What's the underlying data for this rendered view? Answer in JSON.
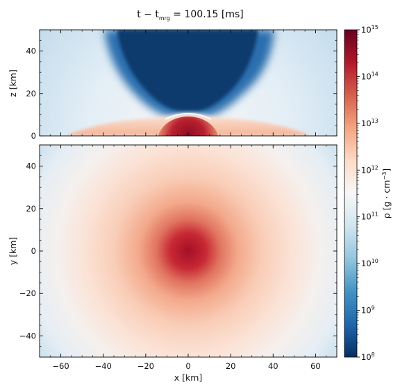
{
  "chart_data": [
    {
      "type": "heatmap",
      "panel": "top",
      "subject": "meridional slice (x-z plane) of rest-mass density",
      "xlim": [
        -70,
        70
      ],
      "ylim": [
        0,
        50
      ],
      "x_ticks": [
        -60,
        -40,
        -20,
        0,
        20,
        40,
        60
      ],
      "y_ticks": [
        0,
        20,
        40
      ],
      "y_tick_labels": [
        "0",
        "20",
        "40"
      ],
      "ylabel": "z [km]",
      "features": {
        "core": {
          "x_center": 0,
          "half_width_km": 12,
          "height_km": 9,
          "log10_rho_max": 15
        },
        "disk_envelope_height_km": 6,
        "low_density_funnel": {
          "x_range": [
            -35,
            35
          ],
          "log10_rho": 8.2
        }
      }
    },
    {
      "type": "heatmap",
      "panel": "bottom",
      "subject": "equatorial slice (x-y plane) of rest-mass density",
      "xlim": [
        -70,
        70
      ],
      "ylim": [
        -50,
        50
      ],
      "x_ticks": [
        -60,
        -40,
        -20,
        0,
        20,
        40,
        60
      ],
      "x_tick_labels": [
        "−60",
        "−40",
        "−20",
        "0",
        "20",
        "40",
        "60"
      ],
      "y_ticks": [
        -40,
        -20,
        0,
        20,
        40
      ],
      "y_tick_labels": [
        "−40",
        "−20",
        "0",
        "20",
        "40"
      ],
      "xlabel": "x [km]",
      "ylabel": "y [km]",
      "radial_profile_log10_rho": [
        [
          0,
          15
        ],
        [
          10,
          13.8
        ],
        [
          20,
          12.8
        ],
        [
          35,
          12
        ],
        [
          50,
          11.2
        ],
        [
          70,
          10.6
        ]
      ]
    }
  ],
  "title": {
    "prefix": "t − t",
    "sub": "mrg",
    "suffix": " = 100.15 [ms]"
  },
  "colorbar": {
    "scale": "log",
    "min_exp": 8,
    "max_exp": 15,
    "colormap": "RdBu_r",
    "tick_exponents": [
      "8",
      "9",
      "10",
      "11",
      "12",
      "13",
      "14",
      "15"
    ],
    "tick_base": "10",
    "label_main": "ρ [g · cm",
    "label_sup": "−3",
    "label_end": "]"
  }
}
